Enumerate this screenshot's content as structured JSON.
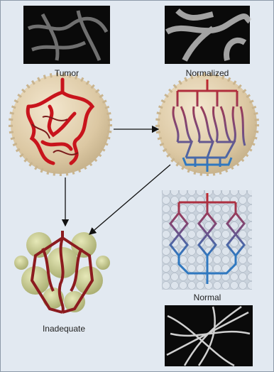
{
  "nodes": [
    {
      "label": "Tumor"
    },
    {
      "label": "Normalized"
    },
    {
      "label": "Normal"
    },
    {
      "label": "Inadequate"
    }
  ]
}
